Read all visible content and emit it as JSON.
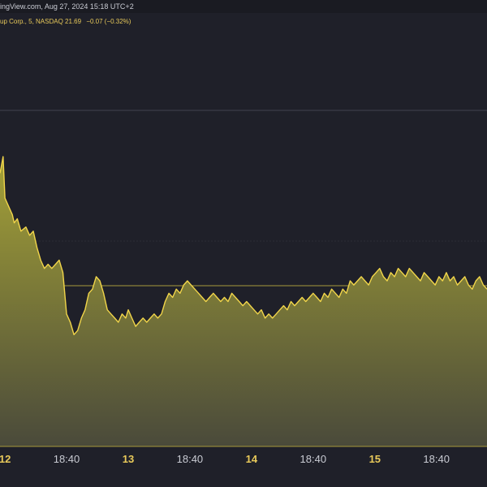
{
  "header": {
    "text": "ingView.com, Aug 27, 2024 15:18 UTC+2"
  },
  "legend": {
    "symbol_text": "up Corp., 5, NASDAQ",
    "price": "21.69",
    "change": "−0.07 (−0.32%)"
  },
  "colors": {
    "background": "#1f2029",
    "line": "#f1d54a",
    "fill_top": "#a5a237",
    "fill_bottom": "#4a4a3a",
    "grid": "#40424e",
    "baseline": "#a79a3a"
  },
  "chart_data": {
    "type": "area",
    "title": "",
    "xlabel": "",
    "ylabel": "",
    "x_ticks": [
      {
        "label": "12",
        "pos": 0.0,
        "day": true
      },
      {
        "label": "18:40",
        "pos": 0.5,
        "day": false
      },
      {
        "label": "13",
        "pos": 1.0,
        "day": true
      },
      {
        "label": "18:40",
        "pos": 1.5,
        "day": false
      },
      {
        "label": "14",
        "pos": 2.0,
        "day": true
      },
      {
        "label": "18:40",
        "pos": 2.5,
        "day": false
      },
      {
        "label": "15",
        "pos": 3.0,
        "day": true
      },
      {
        "label": "18:40",
        "pos": 3.5,
        "day": false
      }
    ],
    "xlim": [
      -0.04,
      3.91
    ],
    "ylim": [
      0,
      1.0
    ],
    "series": [
      {
        "x": [
          -0.04,
          -0.015,
          0.0,
          0.03,
          0.06,
          0.075,
          0.1,
          0.13,
          0.17,
          0.2,
          0.23,
          0.26,
          0.29,
          0.32,
          0.35,
          0.38,
          0.41,
          0.44,
          0.47,
          0.5,
          0.53,
          0.56,
          0.59,
          0.62,
          0.65,
          0.68,
          0.71,
          0.74,
          0.77,
          0.8,
          0.83,
          0.86,
          0.89,
          0.92,
          0.95,
          0.98,
          1.0,
          1.03,
          1.06,
          1.09,
          1.12,
          1.15,
          1.18,
          1.21,
          1.24,
          1.27,
          1.3,
          1.33,
          1.36,
          1.39,
          1.42,
          1.45,
          1.48,
          1.51,
          1.54,
          1.57,
          1.6,
          1.63,
          1.66,
          1.69,
          1.72,
          1.75,
          1.78,
          1.81,
          1.84,
          1.87,
          1.9,
          1.93,
          1.96,
          1.99,
          2.02,
          2.05,
          2.08,
          2.11,
          2.14,
          2.17,
          2.2,
          2.23,
          2.26,
          2.29,
          2.32,
          2.35,
          2.38,
          2.41,
          2.44,
          2.47,
          2.5,
          2.53,
          2.56,
          2.59,
          2.62,
          2.65,
          2.68,
          2.71,
          2.74,
          2.77,
          2.8,
          2.83,
          2.86,
          2.89,
          2.92,
          2.95,
          2.98,
          3.01,
          3.04,
          3.07,
          3.1,
          3.13,
          3.16,
          3.19,
          3.22,
          3.25,
          3.28,
          3.31,
          3.34,
          3.37,
          3.4,
          3.43,
          3.46,
          3.49,
          3.52,
          3.55,
          3.58,
          3.61,
          3.64,
          3.67,
          3.7,
          3.73,
          3.76,
          3.79,
          3.82,
          3.85,
          3.88,
          3.91
        ],
        "y": [
          0.66,
          0.7,
          0.6,
          0.58,
          0.56,
          0.54,
          0.55,
          0.52,
          0.53,
          0.51,
          0.52,
          0.48,
          0.45,
          0.43,
          0.44,
          0.43,
          0.44,
          0.45,
          0.42,
          0.32,
          0.3,
          0.27,
          0.28,
          0.31,
          0.33,
          0.37,
          0.38,
          0.41,
          0.4,
          0.37,
          0.33,
          0.32,
          0.31,
          0.3,
          0.32,
          0.31,
          0.33,
          0.31,
          0.29,
          0.3,
          0.31,
          0.3,
          0.31,
          0.32,
          0.31,
          0.32,
          0.35,
          0.37,
          0.36,
          0.38,
          0.37,
          0.39,
          0.4,
          0.39,
          0.38,
          0.37,
          0.36,
          0.35,
          0.36,
          0.37,
          0.36,
          0.35,
          0.36,
          0.35,
          0.37,
          0.36,
          0.35,
          0.34,
          0.35,
          0.34,
          0.33,
          0.32,
          0.33,
          0.31,
          0.32,
          0.31,
          0.32,
          0.33,
          0.34,
          0.33,
          0.35,
          0.34,
          0.35,
          0.36,
          0.35,
          0.36,
          0.37,
          0.36,
          0.35,
          0.37,
          0.36,
          0.38,
          0.37,
          0.36,
          0.38,
          0.37,
          0.4,
          0.39,
          0.4,
          0.41,
          0.4,
          0.39,
          0.41,
          0.42,
          0.43,
          0.41,
          0.4,
          0.42,
          0.41,
          0.43,
          0.42,
          0.41,
          0.43,
          0.42,
          0.41,
          0.4,
          0.42,
          0.41,
          0.4,
          0.39,
          0.41,
          0.4,
          0.42,
          0.4,
          0.41,
          0.39,
          0.4,
          0.41,
          0.39,
          0.38,
          0.4,
          0.41,
          0.39,
          0.38
        ]
      }
    ],
    "grid": true
  }
}
